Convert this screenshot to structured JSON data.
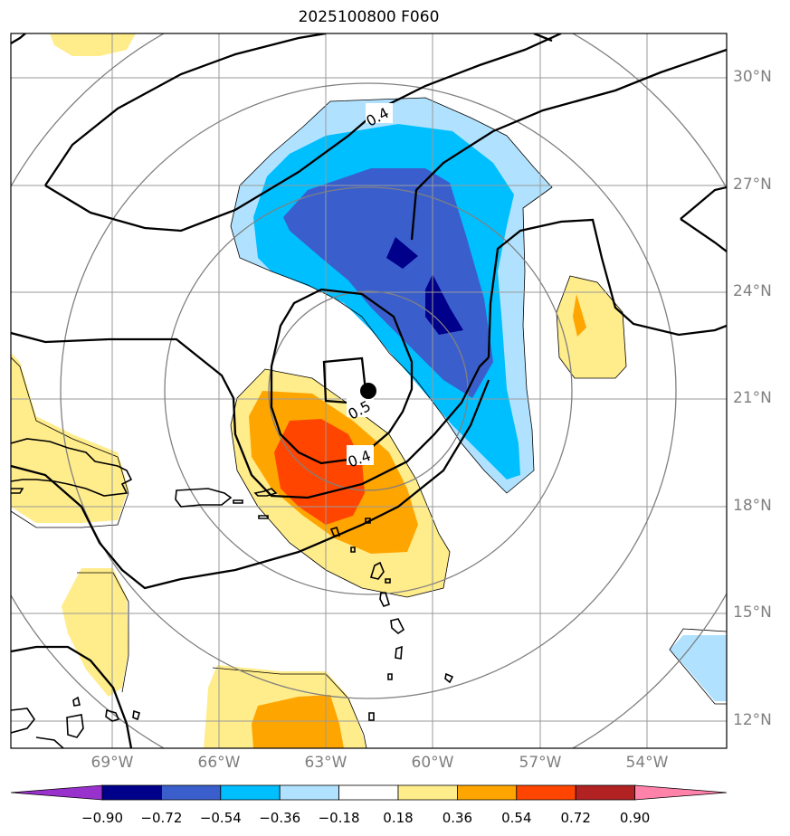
{
  "title": "2025100800 F060",
  "map": {
    "lat_labels": [
      "30°N",
      "27°N",
      "24°N",
      "21°N",
      "18°N",
      "15°N",
      "12°N"
    ],
    "lon_labels": [
      "69°W",
      "66°W",
      "63°W",
      "60°W",
      "57°W",
      "54°W"
    ],
    "contour_labels": [
      "0.4",
      "0.5",
      "0.4"
    ],
    "storm_center": "filled-black-dot"
  },
  "colorbar": {
    "tick_labels": [
      "−0.90",
      "−0.72",
      "−0.54",
      "−0.36",
      "−0.18",
      "0.18",
      "0.36",
      "0.54",
      "0.72",
      "0.90"
    ],
    "colors": [
      "#9932cc",
      "#00008b",
      "#3a5fcd",
      "#00bfff",
      "#b0e2ff",
      "#ffffff",
      "#ffec8b",
      "#ffa500",
      "#ff4500",
      "#b22222",
      "#ff82ab"
    ]
  }
}
